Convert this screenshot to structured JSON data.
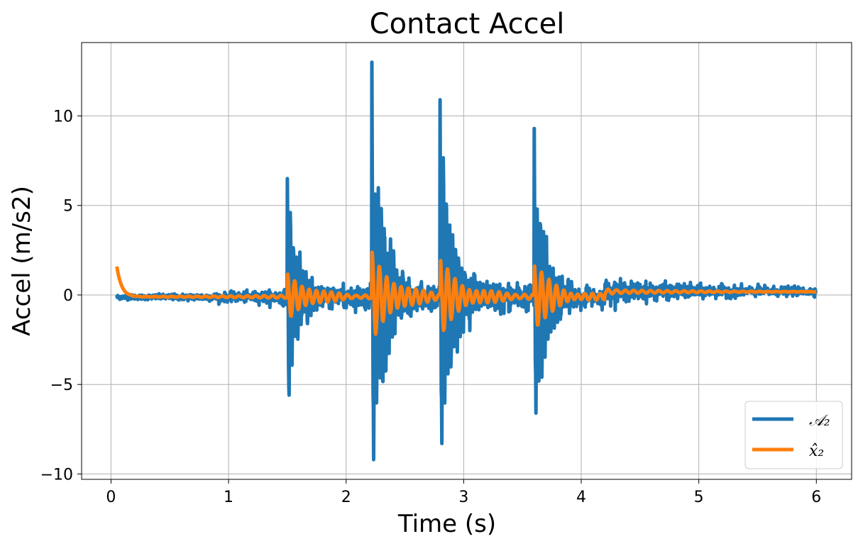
{
  "chart_data": {
    "type": "line",
    "title": "Contact Accel",
    "xlabel": "Time (s)",
    "ylabel": "Accel (m/s2)",
    "xlim": [
      -0.25,
      6.3
    ],
    "ylim": [
      -10.3,
      14.1
    ],
    "xticks": [
      0,
      1,
      2,
      3,
      4,
      5,
      6
    ],
    "xtick_labels": [
      "0",
      "1",
      "2",
      "3",
      "4",
      "5",
      "6"
    ],
    "yticks": [
      -10,
      -5,
      0,
      5,
      10
    ],
    "ytick_labels": [
      "−10",
      "−5",
      "0",
      "5",
      "10"
    ],
    "grid": true,
    "legend_position": "lower-right",
    "series": [
      {
        "name": "𝒜₂",
        "color": "#1f77b4",
        "generated": "dense noisy contact-acceleration trace, bursts at 1.5s, 2.2s, 2.8s, 3.6s",
        "t_start": 0.05,
        "t_end": 6.0,
        "bursts": [
          {
            "t": 1.5,
            "peak_pos": 6.5,
            "peak_neg": -5.6
          },
          {
            "t": 2.22,
            "peak_pos": 13.0,
            "peak_neg": -9.2
          },
          {
            "t": 2.8,
            "peak_pos": 10.9,
            "peak_neg": -8.3
          },
          {
            "t": 3.6,
            "peak_pos": 9.3,
            "peak_neg": -6.6
          }
        ]
      },
      {
        "name": "x̂₂",
        "color": "#ff7f0e",
        "t_start": 0.05,
        "t_end": 6.0,
        "initial_value": 1.7,
        "final_value": 0.2
      }
    ]
  }
}
